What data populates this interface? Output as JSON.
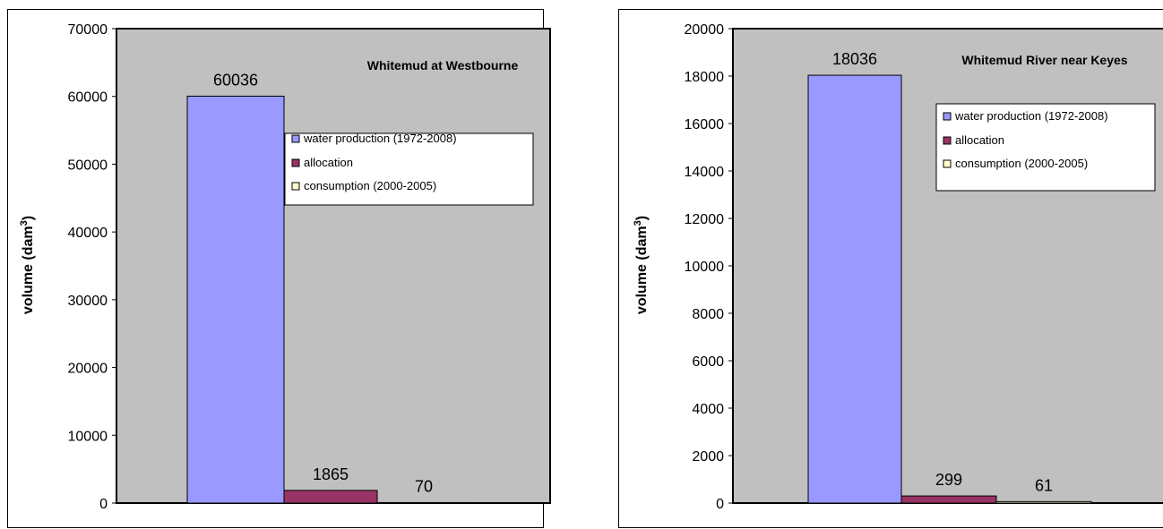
{
  "chart_data": [
    {
      "type": "bar",
      "title": "Whitemud at Westbourne",
      "ylabel_main": "volume (dam",
      "ylabel_sup": "3",
      "ylabel_close": ")",
      "ylim": [
        0,
        70000
      ],
      "yticks": [
        "0",
        "10000",
        "20000",
        "30000",
        "40000",
        "50000",
        "60000",
        "70000"
      ],
      "grid": false,
      "legend_position": "right",
      "series": [
        {
          "name": "water production (1972-2008)",
          "value": 60036,
          "label": "60036",
          "color": "#9999ff"
        },
        {
          "name": "allocation",
          "value": 1865,
          "label": "1865",
          "color": "#993366"
        },
        {
          "name": "consumption (2000-2005)",
          "value": 70,
          "label": "70",
          "color": "#ffffcc"
        }
      ]
    },
    {
      "type": "bar",
      "title": "Whitemud River near Keyes",
      "ylabel_main": "volume (dam",
      "ylabel_sup": "3",
      "ylabel_close": ")",
      "ylim": [
        0,
        20000
      ],
      "yticks": [
        "0",
        "2000",
        "4000",
        "6000",
        "8000",
        "10000",
        "12000",
        "14000",
        "16000",
        "18000",
        "20000"
      ],
      "grid": false,
      "legend_position": "right",
      "series": [
        {
          "name": "water production (1972-2008)",
          "value": 18036,
          "label": "18036",
          "color": "#9999ff"
        },
        {
          "name": "allocation",
          "value": 299,
          "label": "299",
          "color": "#993366"
        },
        {
          "name": "consumption (2000-2005)",
          "value": 61,
          "label": "61",
          "color": "#ffffcc"
        }
      ]
    }
  ],
  "colors": {
    "plot_area": "#c0c0c0",
    "bar_outline": "#000000"
  }
}
